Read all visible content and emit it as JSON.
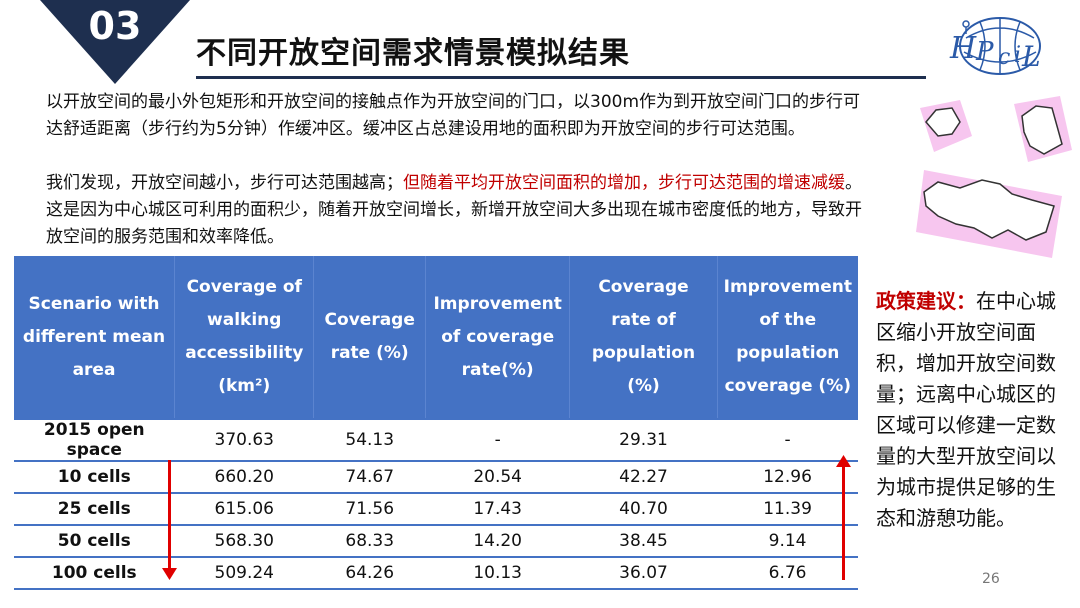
{
  "section_number": "03",
  "title": "不同开放空间需求情景模拟结果",
  "logo_text": "HPciL",
  "paragraph1": "以开放空间的最小外包矩形和开放空间的接触点作为开放空间的门口，以300m作为到开放空间门口的步行可达舒适距离（步行约为5分钟）作缓冲区。缓冲区占总建设用地的面积即为开放空间的步行可达范围。",
  "paragraph2": {
    "part1": "我们发现，开放空间越小，步行可达范围越高；",
    "part2_red": "但随着平均开放空间面积的增加，步行可达范围的增速减缓",
    "part3": "。这是因为中心城区可利用的面积少，随着开放空间增长，新增开放空间大多出现在城市密度低的地方，导致开放空间的服务范围和效率降低。"
  },
  "table": {
    "headers": [
      "Scenario with different mean area",
      "Coverage of walking accessibility (km²)",
      "Coverage rate (%)",
      "Improvement of coverage rate(%)",
      "Coverage rate of population (%)",
      "Improvement of the population coverage (%)"
    ],
    "rows": [
      [
        "2015 open space",
        "370.63",
        "54.13",
        "-",
        "29.31",
        "-"
      ],
      [
        "10 cells",
        "660.20",
        "74.67",
        "20.54",
        "42.27",
        "12.96"
      ],
      [
        "25 cells",
        "615.06",
        "71.56",
        "17.43",
        "40.70",
        "11.39"
      ],
      [
        "50 cells",
        "568.30",
        "68.33",
        "14.20",
        "38.45",
        "9.14"
      ],
      [
        "100 cells",
        "509.24",
        "64.26",
        "10.13",
        "36.07",
        "6.76"
      ]
    ]
  },
  "policy": {
    "lead": "政策建议：",
    "text": "在中心城区缩小开放空间面积，增加开放空间数量；远离中心城区的区域可以修建一定数量的大型开放空间以为城市提供足够的生态和游憩功能。"
  },
  "page_number": "26",
  "colors": {
    "navy": "#1e2f4f",
    "table_header": "#4472c4",
    "red": "#c00000",
    "pink_shape": "#f7c6ef"
  }
}
